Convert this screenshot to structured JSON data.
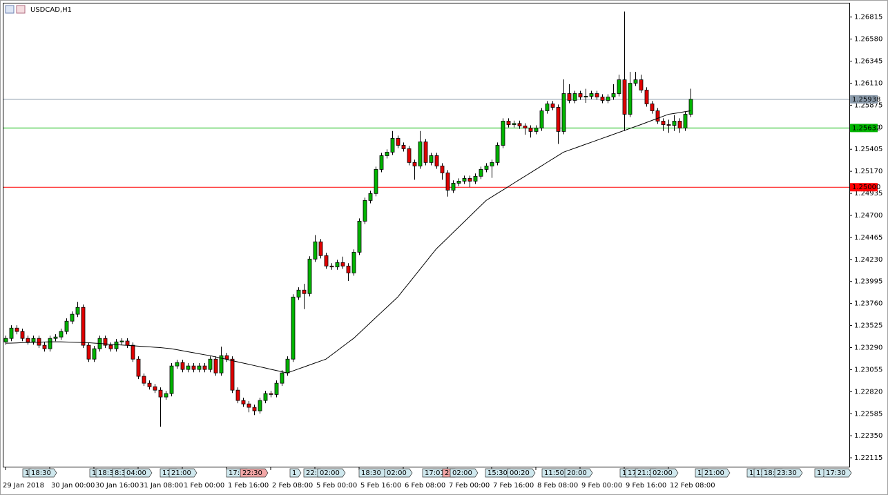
{
  "chart_data": {
    "type": "candlestick",
    "title": "USDCAD,H1",
    "categories": [
      "29 Jan 2018",
      null,
      null,
      null,
      null,
      null,
      null,
      null,
      "30 Jan 00:00",
      null,
      null,
      null,
      null,
      null,
      null,
      null,
      "30 Jan 16:00",
      null,
      null,
      null,
      null,
      null,
      null,
      null,
      "31 Jan 08:00",
      null,
      null,
      null,
      null,
      null,
      null,
      null,
      "1 Feb 00:00",
      null,
      null,
      null,
      null,
      null,
      null,
      null,
      "1 Feb 16:00",
      null,
      null,
      null,
      null,
      null,
      null,
      null,
      "2 Feb 08:00",
      null,
      null,
      null,
      null,
      null,
      null,
      null,
      "5 Feb 00:00",
      null,
      null,
      null,
      null,
      null,
      null,
      null,
      "5 Feb 16:00",
      null,
      null,
      null,
      null,
      null,
      null,
      null,
      "6 Feb 08:00",
      null,
      null,
      null,
      null,
      null,
      null,
      null,
      "7 Feb 00:00",
      null,
      null,
      null,
      null,
      null,
      null,
      null,
      "7 Feb 16:00",
      null,
      null,
      null,
      null,
      null,
      null,
      null,
      "8 Feb 08:00",
      null,
      null,
      null,
      null,
      null,
      null,
      null,
      "9 Feb 00:00",
      null,
      null,
      null,
      null,
      null,
      null,
      null,
      "9 Feb 16:00",
      null,
      null,
      null,
      null,
      null,
      null,
      null,
      "12 Feb 08:00",
      null,
      null,
      null,
      null
    ],
    "open": [
      1.23351,
      1.23388,
      1.23498,
      1.23462,
      1.23388,
      1.23351,
      1.23388,
      1.23315,
      1.23278,
      1.23388,
      1.23403,
      1.23462,
      1.23572,
      1.23646,
      1.23719,
      1.23315,
      1.23167,
      1.23278,
      1.23388,
      1.23315,
      1.23278,
      1.23351,
      1.2336,
      1.23315,
      1.23167,
      1.22984,
      1.2291,
      1.22873,
      1.22836,
      1.22763,
      1.228,
      1.23094,
      1.23131,
      1.23057,
      1.23094,
      1.23057,
      1.23094,
      1.23057,
      1.23167,
      1.2302,
      1.23204,
      1.23167,
      1.22836,
      1.22726,
      1.22689,
      1.22653,
      1.22616,
      1.22726,
      1.228,
      1.2279,
      1.2291,
      1.2302,
      1.23167,
      1.23829,
      1.23903,
      1.23866,
      1.24234,
      1.24418,
      1.24271,
      1.2416,
      1.2415,
      1.24197,
      1.2416,
      1.24087,
      1.24307,
      1.24638,
      1.24859,
      1.24933,
      1.2519,
      1.25337,
      1.25374,
      1.25521,
      1.25447,
      1.25411,
      1.25264,
      1.25227,
      1.25484,
      1.25264,
      1.25337,
      1.25227,
      1.25153,
      1.24969,
      1.25043,
      1.25065,
      1.25094,
      1.25065,
      1.25117,
      1.2519,
      1.25227,
      1.25264,
      1.25447,
      1.25705,
      1.25668,
      1.2568,
      1.25653,
      1.25631,
      1.25595,
      1.25631,
      1.25815,
      1.25889,
      1.25852,
      1.25595,
      1.25999,
      1.25926,
      1.25999,
      1.25962,
      1.2597,
      1.25999,
      1.25962,
      1.25926,
      1.25962,
      1.25999,
      1.26146,
      1.25778,
      1.26109,
      1.26146,
      1.26036,
      1.25889,
      1.25815,
      1.25705,
      1.25668,
      1.2566,
      1.25705,
      1.25631,
      1.25778
    ],
    "high": [
      1.23418,
      1.23528,
      1.23528,
      1.23492,
      1.23418,
      1.23418,
      1.23418,
      1.23345,
      1.23418,
      1.23433,
      1.23492,
      1.23602,
      1.23676,
      1.23778,
      1.23749,
      1.23345,
      1.23308,
      1.23418,
      1.23418,
      1.23345,
      1.23381,
      1.2339,
      1.2339,
      1.23345,
      1.23197,
      1.23014,
      1.2294,
      1.22903,
      1.22866,
      1.2283,
      1.23124,
      1.23161,
      1.23161,
      1.23124,
      1.23124,
      1.23124,
      1.23124,
      1.23197,
      1.23197,
      1.233,
      1.23234,
      1.23197,
      1.22866,
      1.22756,
      1.22719,
      1.22683,
      1.22756,
      1.2283,
      1.2283,
      1.2294,
      1.2305,
      1.23197,
      1.23859,
      1.23933,
      1.2397,
      1.24264,
      1.2449,
      1.24448,
      1.24301,
      1.2419,
      1.24227,
      1.2426,
      1.2419,
      1.24337,
      1.24668,
      1.24889,
      1.24963,
      1.2522,
      1.25367,
      1.25404,
      1.256,
      1.25551,
      1.25477,
      1.25441,
      1.25294,
      1.256,
      1.25514,
      1.25367,
      1.25367,
      1.25257,
      1.25183,
      1.25073,
      1.25095,
      1.25124,
      1.25124,
      1.25147,
      1.2522,
      1.25257,
      1.25294,
      1.25477,
      1.25735,
      1.25735,
      1.2571,
      1.2571,
      1.25683,
      1.25661,
      1.25661,
      1.25845,
      1.25919,
      1.25919,
      1.25882,
      1.2615,
      1.261,
      1.26029,
      1.26029,
      1.2605,
      1.26029,
      1.26029,
      1.25992,
      1.25992,
      1.261,
      1.262,
      1.26874,
      1.2623,
      1.2623,
      1.262,
      1.26066,
      1.25919,
      1.25845,
      1.25735,
      1.2572,
      1.2577,
      1.25735,
      1.25808,
      1.26051
    ],
    "low": [
      1.23321,
      1.23358,
      1.23432,
      1.23358,
      1.23321,
      1.23321,
      1.23285,
      1.23248,
      1.23248,
      1.23358,
      1.23373,
      1.23432,
      1.23542,
      1.23616,
      1.23285,
      1.23137,
      1.23137,
      1.23248,
      1.23285,
      1.23248,
      1.23248,
      1.23321,
      1.23285,
      1.23137,
      1.22954,
      1.2288,
      1.22843,
      1.22806,
      1.22447,
      1.22733,
      1.2277,
      1.23064,
      1.23027,
      1.23027,
      1.23027,
      1.23027,
      1.23027,
      1.23027,
      1.2299,
      1.2299,
      1.23137,
      1.22806,
      1.22696,
      1.22659,
      1.226,
      1.2257,
      1.22586,
      1.22696,
      1.2276,
      1.2276,
      1.2288,
      1.2299,
      1.23137,
      1.23799,
      1.237,
      1.23836,
      1.24204,
      1.24241,
      1.2413,
      1.2412,
      1.2412,
      1.2413,
      1.24,
      1.24057,
      1.24277,
      1.24608,
      1.24829,
      1.24903,
      1.2516,
      1.25307,
      1.25344,
      1.25417,
      1.25381,
      1.25234,
      1.2508,
      1.25197,
      1.25234,
      1.25234,
      1.25197,
      1.2508,
      1.249,
      1.24939,
      1.25013,
      1.25035,
      1.25,
      1.25035,
      1.25087,
      1.2516,
      1.251,
      1.25234,
      1.25417,
      1.25638,
      1.25638,
      1.25623,
      1.2556,
      1.2553,
      1.25565,
      1.25601,
      1.25785,
      1.25822,
      1.25462,
      1.25565,
      1.25896,
      1.25896,
      1.25932,
      1.259,
      1.2594,
      1.25932,
      1.25896,
      1.25896,
      1.25932,
      1.25969,
      1.256,
      1.25748,
      1.26079,
      1.26006,
      1.25859,
      1.25785,
      1.25675,
      1.256,
      1.2558,
      1.256,
      1.2558,
      1.25601,
      1.25748
    ],
    "close": [
      1.23388,
      1.23498,
      1.23462,
      1.23388,
      1.23351,
      1.23388,
      1.23315,
      1.23278,
      1.23388,
      1.23403,
      1.23462,
      1.23572,
      1.23646,
      1.23719,
      1.23315,
      1.23167,
      1.23278,
      1.23388,
      1.23315,
      1.23278,
      1.23351,
      1.2336,
      1.23315,
      1.23167,
      1.22984,
      1.2291,
      1.22873,
      1.22836,
      1.22763,
      1.228,
      1.23094,
      1.23131,
      1.23057,
      1.23094,
      1.23057,
      1.23094,
      1.23057,
      1.23167,
      1.2302,
      1.23204,
      1.23167,
      1.22836,
      1.22726,
      1.22689,
      1.22653,
      1.22616,
      1.22726,
      1.228,
      1.2279,
      1.2291,
      1.2302,
      1.23167,
      1.23829,
      1.23903,
      1.23866,
      1.24234,
      1.24418,
      1.24271,
      1.2416,
      1.2415,
      1.24197,
      1.2416,
      1.24087,
      1.24307,
      1.24638,
      1.24859,
      1.24933,
      1.2519,
      1.25337,
      1.25374,
      1.25521,
      1.25447,
      1.25411,
      1.25264,
      1.25227,
      1.25484,
      1.25264,
      1.25337,
      1.25227,
      1.25153,
      1.24969,
      1.25043,
      1.25065,
      1.25094,
      1.25065,
      1.25117,
      1.2519,
      1.25227,
      1.25264,
      1.25447,
      1.25705,
      1.25668,
      1.2568,
      1.25653,
      1.25631,
      1.25595,
      1.25631,
      1.25815,
      1.25889,
      1.25852,
      1.25595,
      1.25999,
      1.25926,
      1.25999,
      1.25962,
      1.2597,
      1.25999,
      1.25962,
      1.25926,
      1.25962,
      1.25999,
      1.26146,
      1.25778,
      1.26109,
      1.26146,
      1.26036,
      1.25889,
      1.25815,
      1.25705,
      1.25668,
      1.2566,
      1.25705,
      1.25631,
      1.25778,
      1.25938
    ],
    "up_color": "#00b400",
    "down_color": "#e00000",
    "ma": {
      "color": "#000000",
      "values": [
        1.23337,
        1.23338,
        1.2334,
        1.23342,
        1.23344,
        1.23346,
        1.23348,
        1.2335,
        1.23352,
        1.23352,
        1.23352,
        1.2335,
        1.23348,
        1.23346,
        1.23344,
        1.23342,
        1.23338,
        1.23334,
        1.2333,
        1.23326,
        1.23322,
        1.23318,
        1.23314,
        1.2331,
        1.23306,
        1.23302,
        1.23298,
        1.23294,
        1.2329,
        1.23284,
        1.23278,
        1.23268,
        1.23257,
        1.23246,
        1.23236,
        1.23225,
        1.23214,
        1.23204,
        1.23191,
        1.23178,
        1.23165,
        1.23151,
        1.23138,
        1.23125,
        1.23112,
        1.23099,
        1.23086,
        1.23073,
        1.23059,
        1.23046,
        1.23033,
        1.2302,
        1.23041,
        1.23062,
        1.23083,
        1.23104,
        1.23125,
        1.23146,
        1.23167,
        1.23211,
        1.23255,
        1.233,
        1.23344,
        1.23388,
        1.23443,
        1.23498,
        1.23553,
        1.23609,
        1.23664,
        1.23719,
        1.23774,
        1.23829,
        1.23903,
        1.23976,
        1.2405,
        1.24123,
        1.24197,
        1.24271,
        1.24344,
        1.24401,
        1.24458,
        1.24516,
        1.24573,
        1.2463,
        1.24687,
        1.24745,
        1.24802,
        1.24859,
        1.24896,
        1.24933,
        1.24969,
        1.25006,
        1.25043,
        1.2508,
        1.25116,
        1.25153,
        1.2519,
        1.25227,
        1.25264,
        1.253,
        1.25337,
        1.25374,
        1.25395,
        1.25416,
        1.25437,
        1.25458,
        1.25479,
        1.255,
        1.25521,
        1.25542,
        1.25563,
        1.25584,
        1.25605,
        1.25626,
        1.25647,
        1.25668,
        1.2569,
        1.25712,
        1.25734,
        1.25756,
        1.25778,
        1.25787,
        1.25796,
        1.25806,
        1.25815
      ]
    },
    "levels": [
      {
        "value": 1.25938,
        "label": "1.25938",
        "color": "#8a9aaa"
      },
      {
        "value": 1.25632,
        "label": "1.25632",
        "color": "#00b400"
      },
      {
        "value": 1.25,
        "label": "1.25000",
        "color": "#ff0000"
      }
    ],
    "ylim": [
      1.2202,
      1.2696
    ],
    "yticks": [
      1.26815,
      {
        "value": 1.2658,
        "label": "1.26580"
      },
      1.26345,
      {
        "value": 1.2611,
        "label": "1.26110"
      },
      1.25875,
      {
        "value": 1.2564,
        "label": "1.25640"
      },
      1.25405,
      {
        "value": 1.2517,
        "label": "1.25170"
      },
      1.24935,
      {
        "value": 1.247,
        "label": "1.24700"
      },
      1.24465,
      {
        "value": 1.2423,
        "label": "1.24230"
      },
      1.23995,
      {
        "value": 1.2376,
        "label": "1.23760"
      },
      1.23525,
      {
        "value": 1.2329,
        "label": "1.23290"
      },
      1.23055,
      {
        "value": 1.2282,
        "label": "1.22820"
      },
      1.22585,
      {
        "value": 1.2235,
        "label": "1.22350"
      },
      1.22115
    ],
    "events": [
      "1",
      "18:30",
      "1",
      "18:30",
      "8:3",
      "04:00",
      "17:",
      "21:00",
      "17:3",
      "22:30",
      "1",
      "22:",
      "02:00",
      "18:30",
      "02:00",
      "17:01",
      "23",
      "02:00",
      "15:30",
      "00:20",
      "11:50",
      "20:00",
      "1",
      "17",
      "21:3",
      "02:00",
      "10",
      "21:00",
      "1",
      "15",
      "18:3",
      "23:30",
      "1",
      "17:30"
    ]
  }
}
